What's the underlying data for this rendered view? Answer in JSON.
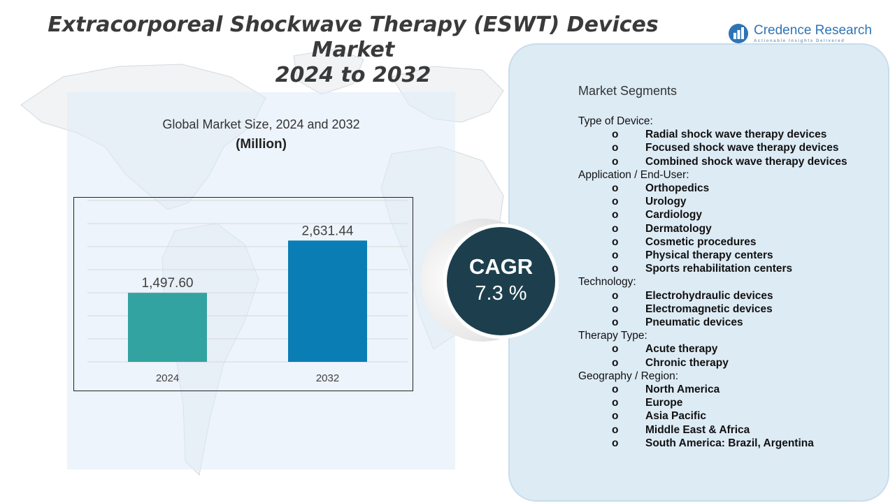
{
  "title": {
    "line1": "Extracorporeal Shockwave Therapy (ESWT) Devices Market",
    "line2": "2024 to 2032"
  },
  "logo": {
    "name": "Credence Research",
    "tagline": "Actionable Insights Delivered",
    "icon": "bar-chart-icon"
  },
  "chart": {
    "title": "Global Market Size,  2024 and 2032",
    "unit": "(Million)"
  },
  "chart_data": {
    "type": "bar",
    "title": "Global Market Size, 2024 and 2032",
    "ylabel": "(Million)",
    "categories": [
      "2024",
      "2032"
    ],
    "values": [
      1497.6,
      2631.44
    ],
    "labels": [
      "1,497.60",
      "2,631.44"
    ],
    "colors": [
      "#33a3a2",
      "#0b7db5"
    ],
    "ylim": [
      0,
      3500
    ],
    "grid": true
  },
  "cagr": {
    "label": "CAGR",
    "value": "7.3 %"
  },
  "segments": {
    "title": "Market Segments",
    "bullet": "o",
    "groups": [
      {
        "name": "Type of Device:",
        "items": [
          "Radial shock wave therapy devices",
          "Focused shock wave therapy devices",
          "Combined shock wave therapy devices"
        ]
      },
      {
        "name": "Application / End-User:",
        "items": [
          "Orthopedics",
          "Urology",
          "Cardiology",
          "Dermatology",
          "Cosmetic procedures",
          "Physical therapy centers",
          "Sports rehabilitation centers"
        ]
      },
      {
        "name": "Technology:",
        "items": [
          "Electrohydraulic devices",
          "Electromagnetic devices",
          "Pneumatic devices"
        ]
      },
      {
        "name": "Therapy Type:",
        "items": [
          "Acute therapy",
          "Chronic therapy"
        ]
      },
      {
        "name": "Geography / Region:",
        "items": [
          "North America",
          "Europe",
          "Asia Pacific",
          "Middle East & Africa",
          "South America: Brazil, Argentina"
        ]
      }
    ]
  }
}
